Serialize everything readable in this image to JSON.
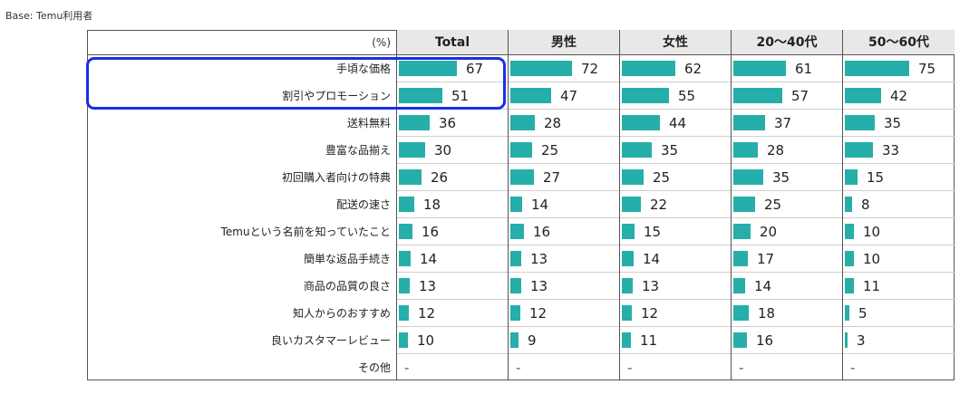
{
  "base_label": "Base: Temu利用者",
  "unit_label": "(%)",
  "colors": {
    "bar": "#26aeaa",
    "header_bg": "#e8e8e8",
    "highlight": "#1a2ee6"
  },
  "chart_data": {
    "type": "bar",
    "orientation": "horizontal",
    "xlim": [
      0,
      100
    ],
    "categories": [
      "手頃な価格",
      "割引やプロモーション",
      "送料無料",
      "豊富な品揃え",
      "初回購入者向けの特典",
      "配送の速さ",
      "Temuという名前を知っていたこと",
      "簡単な返品手続き",
      "商品の品質の良さ",
      "知人からのおすすめ",
      "良いカスタマーレビュー",
      "その他"
    ],
    "series": [
      {
        "name": "Total",
        "values": [
          67,
          51,
          36,
          30,
          26,
          18,
          16,
          14,
          13,
          12,
          10,
          null
        ]
      },
      {
        "name": "男性",
        "values": [
          72,
          47,
          28,
          25,
          27,
          14,
          16,
          13,
          13,
          12,
          9,
          null
        ]
      },
      {
        "name": "女性",
        "values": [
          62,
          55,
          44,
          35,
          25,
          22,
          15,
          14,
          13,
          12,
          11,
          null
        ]
      },
      {
        "name": "20～40代",
        "values": [
          61,
          57,
          37,
          28,
          35,
          25,
          20,
          17,
          14,
          18,
          16,
          null
        ]
      },
      {
        "name": "50～60代",
        "values": [
          75,
          42,
          35,
          33,
          15,
          8,
          10,
          10,
          11,
          5,
          3,
          null
        ]
      }
    ],
    "missing_label": "-",
    "highlighted_rows": [
      "手頃な価格",
      "割引やプロモーション"
    ]
  }
}
